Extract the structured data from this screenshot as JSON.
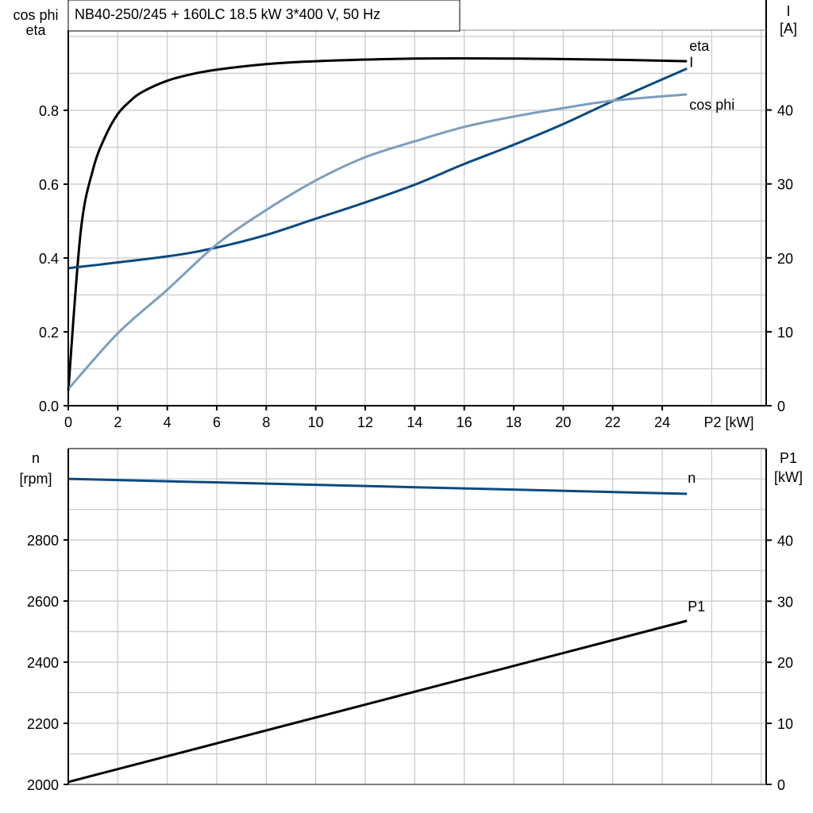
{
  "title": "NB40-250/245 + 160LC   18.5 kW   3*400 V, 50 Hz",
  "colors": {
    "eta": "#000000",
    "I": "#0a4a80",
    "cos_phi": "#7a9fc0",
    "n": "#0a4a80",
    "P1": "#000000",
    "grid": "#cccccc"
  },
  "chart_data": [
    {
      "type": "line",
      "xlabel": "P2 [kW]",
      "ylabel_left": [
        "cos phi",
        "eta"
      ],
      "ylabel_right": [
        "I",
        "[A]"
      ],
      "xlim": [
        0,
        28.2
      ],
      "ylim_left": [
        0,
        1.017
      ],
      "ylim_right": [
        0,
        50.8
      ],
      "xticks": [
        0,
        2,
        4,
        6,
        8,
        10,
        12,
        14,
        16,
        18,
        20,
        22,
        24
      ],
      "yticks_left": [
        "0.0",
        "0.2",
        "0.4",
        "0.6",
        "0.8"
      ],
      "yticks_right": [
        "0",
        "10",
        "20",
        "30",
        "40"
      ],
      "grid": true,
      "series": [
        {
          "name": "eta",
          "axis": "left",
          "x": [
            0,
            0.5,
            1,
            1.5,
            2,
            2.5,
            3,
            4,
            5,
            6,
            8,
            10,
            14,
            18,
            22,
            25
          ],
          "y": [
            0.04,
            0.47,
            0.64,
            0.73,
            0.79,
            0.825,
            0.85,
            0.88,
            0.898,
            0.91,
            0.925,
            0.933,
            0.94,
            0.94,
            0.937,
            0.933
          ]
        },
        {
          "name": "I",
          "axis": "right",
          "x": [
            0,
            4,
            6,
            8,
            10,
            12,
            14,
            16,
            18,
            20,
            22,
            25
          ],
          "y": [
            18.6,
            20.2,
            21.4,
            23.1,
            25.3,
            27.5,
            29.9,
            32.7,
            35.3,
            38.1,
            41.2,
            45.6
          ]
        },
        {
          "name": "cos phi",
          "axis": "left",
          "x": [
            0,
            2,
            4,
            6,
            8,
            10,
            12,
            14,
            16,
            18,
            20,
            22,
            25
          ],
          "y": [
            0.045,
            0.196,
            0.314,
            0.437,
            0.53,
            0.61,
            0.673,
            0.716,
            0.755,
            0.783,
            0.806,
            0.826,
            0.843
          ]
        }
      ]
    },
    {
      "type": "line",
      "ylabel_left": [
        "n",
        "[rpm]"
      ],
      "ylabel_right": [
        "P1",
        "[kW]"
      ],
      "xlim": [
        0,
        28.2
      ],
      "ylim_left": [
        2000,
        3099
      ],
      "ylim_right": [
        0,
        55
      ],
      "yticks_left": [
        "2000",
        "2200",
        "2400",
        "2600",
        "2800"
      ],
      "yticks_right": [
        "0",
        "10",
        "20",
        "30",
        "40"
      ],
      "grid": true,
      "series": [
        {
          "name": "n",
          "axis": "left",
          "x": [
            0,
            25
          ],
          "y": [
            3000,
            2951
          ]
        },
        {
          "name": "P1",
          "axis": "right",
          "x": [
            0,
            25
          ],
          "y": [
            0.4,
            26.8
          ]
        }
      ]
    }
  ]
}
